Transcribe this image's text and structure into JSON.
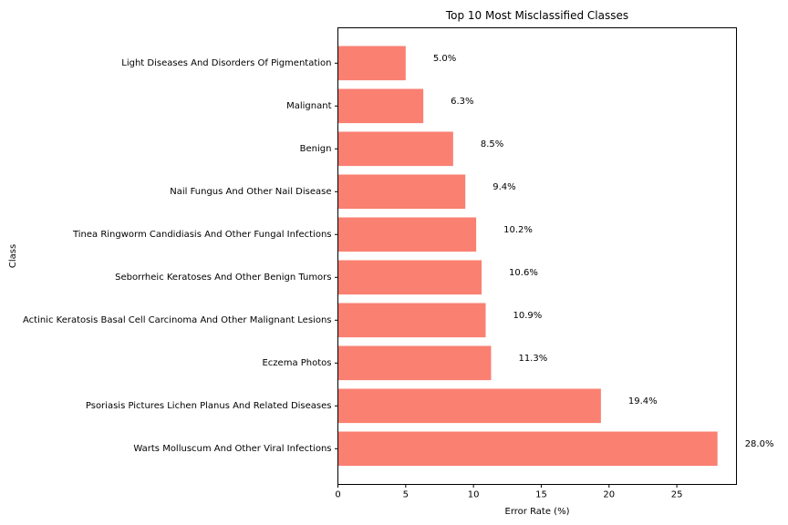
{
  "chart_data": {
    "type": "bar",
    "orientation": "horizontal",
    "title": "Top 10 Most Misclassified Classes",
    "xlabel": "Error Rate (%)",
    "ylabel": "Class",
    "xlim": [
      0,
      29.4
    ],
    "xticks": [
      0,
      5,
      10,
      15,
      20,
      25
    ],
    "grid": false,
    "bar_color": "#fa8072",
    "categories": [
      "Warts Molluscum And Other Viral Infections",
      "Psoriasis Pictures Lichen Planus And Related Diseases",
      "Eczema Photos",
      "Actinic Keratosis Basal Cell Carcinoma And Other Malignant Lesions",
      "Seborrheic Keratoses And Other Benign Tumors",
      "Tinea Ringworm Candidiasis And Other Fungal Infections",
      "Nail Fungus And Other Nail Disease",
      "Benign",
      "Malignant",
      "Light Diseases And Disorders Of Pigmentation"
    ],
    "values": [
      28.0,
      19.4,
      11.3,
      10.9,
      10.6,
      10.2,
      9.4,
      8.5,
      6.3,
      5.0
    ],
    "value_labels": [
      "28.0%",
      "19.4%",
      "11.3%",
      "10.9%",
      "10.6%",
      "10.2%",
      "9.4%",
      "8.5%",
      "6.3%",
      "5.0%"
    ]
  }
}
